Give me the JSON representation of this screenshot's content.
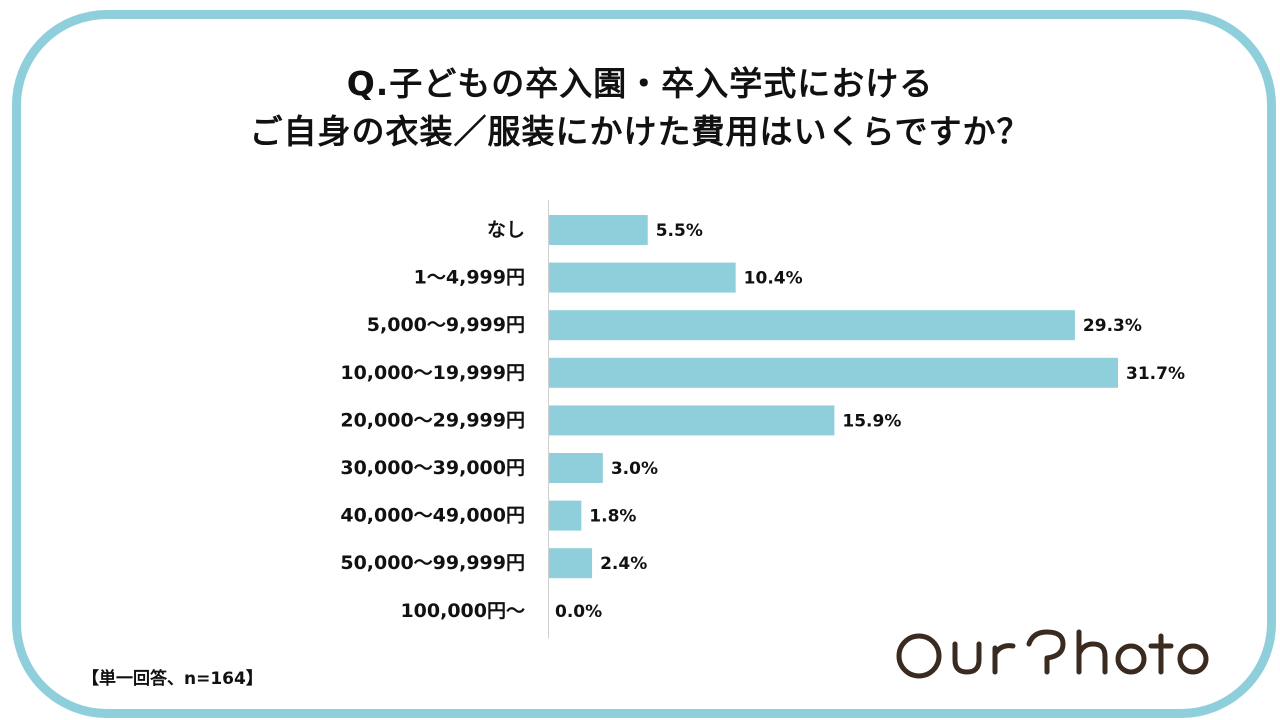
{
  "chart_data": {
    "type": "bar",
    "orientation": "horizontal",
    "title": [
      "Q.子どもの卒入園・卒入学式における",
      "ご自身の衣装／服装にかけた費用はいくらですか？"
    ],
    "categories": [
      "なし",
      "1〜4,999円",
      "5,000〜9,999円",
      "10,000〜19,999円",
      "20,000〜29,999円",
      "30,000〜39,000円",
      "40,000〜49,000円",
      "50,000〜99,999円",
      "100,000円〜"
    ],
    "values": [
      5.5,
      10.4,
      29.3,
      31.7,
      15.9,
      3.0,
      1.8,
      2.4,
      0.0
    ],
    "value_labels": [
      "5.5%",
      "10.4%",
      "29.3%",
      "31.7%",
      "15.9%",
      "3.0%",
      "1.8%",
      "2.4%",
      "0.0%"
    ],
    "xlim": [
      0,
      31.7
    ],
    "bar_color": "#8fcfdc",
    "grid": false,
    "legend": "none"
  },
  "footnote": "【単一回答、n=164】",
  "logo": {
    "text": "OurPhoto",
    "color": "#3a2a1f"
  },
  "frame_color": "#8fcfdc"
}
